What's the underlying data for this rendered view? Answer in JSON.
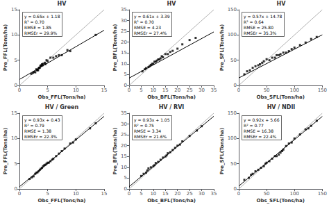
{
  "chart_data": [
    {
      "type": "scatter",
      "title": "HV",
      "xlabel": "Obs_FFL(Tons/ha)",
      "ylabel": "Pre_FFL(Tons/ha)",
      "xlim": [
        0,
        15
      ],
      "ylim": [
        0,
        15
      ],
      "xticks": [
        0,
        5,
        10,
        15
      ],
      "yticks": [
        0,
        5,
        10,
        15
      ],
      "grid": false,
      "annotations": [
        "y = 0.65x + 1.18",
        "R² = 0.70",
        "RMSE = 1.85",
        "RMSEr = 29.9%"
      ],
      "series": [
        {
          "type": "line",
          "color": "#b0b0b0",
          "line_style": "solid",
          "x": [
            0,
            15
          ],
          "values": [
            0,
            15
          ]
        },
        {
          "type": "line",
          "color": "black",
          "line_style": "solid",
          "x": [
            0,
            15
          ],
          "values": [
            1.18,
            10.93
          ]
        },
        {
          "type": "scatter",
          "color": "black",
          "marker": "square",
          "x": [
            2.1,
            2.4,
            2.6,
            2.8,
            3.0,
            3.1,
            3.2,
            3.3,
            3.4,
            3.5,
            3.6,
            3.7,
            3.8,
            3.9,
            4.0,
            4.1,
            4.2,
            4.5,
            4.6,
            4.8,
            5.0,
            5.5,
            6.0,
            6.5,
            7.0,
            7.5,
            8.5,
            9.0,
            13.5
          ],
          "values": [
            2.3,
            2.5,
            2.7,
            2.6,
            3.2,
            3.0,
            3.1,
            3.0,
            3.4,
            3.5,
            3.5,
            3.8,
            4.0,
            3.9,
            4.2,
            4.0,
            4.3,
            4.5,
            4.2,
            5.0,
            4.8,
            5.5,
            5.5,
            5.8,
            6.0,
            6.0,
            7.0,
            6.8,
            10.0
          ]
        }
      ]
    },
    {
      "type": "scatter",
      "title": "HV",
      "xlabel": "Obs_BFL(Tons/ha)",
      "ylabel": "Pre_BFL(Tons/ha)",
      "xlim": [
        0,
        35
      ],
      "ylim": [
        0,
        35
      ],
      "xticks": [
        0,
        5,
        10,
        15,
        20,
        25,
        30,
        35
      ],
      "yticks": [
        0,
        5,
        10,
        15,
        20,
        25,
        30,
        35
      ],
      "grid": false,
      "annotations": [
        "y = 0.61x + 3.39",
        "R² = 0.70",
        "RMSE = 4.23",
        "RMSEr = 27.4%"
      ],
      "series": [
        {
          "type": "line",
          "color": "#b0b0b0",
          "line_style": "solid",
          "x": [
            0,
            35
          ],
          "values": [
            0,
            35
          ]
        },
        {
          "type": "line",
          "color": "black",
          "line_style": "solid",
          "x": [
            0,
            35
          ],
          "values": [
            3.39,
            24.74
          ]
        },
        {
          "type": "scatter",
          "color": "black",
          "marker": "square",
          "x": [
            5.5,
            6.5,
            7.0,
            8.0,
            8.5,
            9.0,
            9.5,
            10.0,
            10.5,
            11.0,
            11.5,
            12.0,
            12.5,
            13.0,
            13.5,
            14.0,
            15.0,
            16.0,
            17.0,
            18.0,
            20.0,
            22.0,
            25.0,
            27.5
          ],
          "values": [
            6.5,
            7.5,
            8.0,
            8.5,
            9.0,
            9.5,
            10.0,
            10.0,
            11.0,
            11.0,
            11.5,
            12.0,
            12.0,
            12.5,
            13.5,
            13.0,
            14.5,
            14.5,
            15.5,
            16.0,
            17.0,
            19.0,
            21.0,
            22.0
          ]
        }
      ]
    },
    {
      "type": "scatter",
      "title": "HV",
      "xlabel": "Obs_SFL(Tons/ha)",
      "ylabel": "Pre_SFL(Tons/ha)",
      "xlim": [
        0,
        150
      ],
      "ylim": [
        0,
        150
      ],
      "xticks": [
        0,
        50,
        100,
        150
      ],
      "yticks": [
        0,
        50,
        100,
        150
      ],
      "grid": false,
      "annotations": [
        "y = 0.57x + 14.78",
        "R² = 0.64",
        "RMSE = 25.80",
        "RMSEr = 35.3%"
      ],
      "series": [
        {
          "type": "line",
          "color": "#b0b0b0",
          "line_style": "solid",
          "x": [
            0,
            150
          ],
          "values": [
            0,
            150
          ]
        },
        {
          "type": "line",
          "color": "black",
          "line_style": "solid",
          "x": [
            0,
            150
          ],
          "values": [
            14.78,
            100.28
          ]
        },
        {
          "type": "scatter",
          "color": "black",
          "marker": "square",
          "x": [
            10,
            15,
            20,
            25,
            30,
            35,
            38,
            42,
            45,
            50,
            55,
            60,
            65,
            68,
            72,
            75,
            80,
            85,
            90,
            95,
            100,
            110,
            120,
            130,
            140
          ],
          "values": [
            22,
            28,
            30,
            35,
            38,
            40,
            42,
            45,
            48,
            52,
            50,
            55,
            55,
            60,
            60,
            62,
            65,
            65,
            68,
            72,
            75,
            80,
            85,
            92,
            96
          ]
        }
      ]
    },
    {
      "type": "scatter",
      "title": "HV / Green",
      "xlabel": "Obs_FFL(Tons/ha)",
      "ylabel": "Pre_FFL(Tons/ha)",
      "xlim": [
        0,
        15
      ],
      "ylim": [
        0,
        15
      ],
      "xticks": [
        0,
        5,
        10,
        15
      ],
      "yticks": [
        0,
        5,
        10,
        15
      ],
      "grid": false,
      "annotations": [
        "y = 0.93x + 0.43",
        "R² = 0.79",
        "RMSE = 1.38",
        "RMSEr = 22.3%"
      ],
      "series": [
        {
          "type": "line",
          "color": "#b0b0b0",
          "line_style": "solid",
          "x": [
            0,
            15
          ],
          "values": [
            0,
            15
          ]
        },
        {
          "type": "line",
          "color": "black",
          "line_style": "solid",
          "x": [
            0,
            15
          ],
          "values": [
            0.43,
            14.38
          ]
        },
        {
          "type": "scatter",
          "color": "black",
          "marker": "square",
          "x": [
            1.8,
            2.2,
            2.5,
            2.8,
            3.0,
            3.2,
            3.4,
            3.6,
            3.8,
            4.0,
            4.2,
            4.4,
            4.6,
            4.8,
            5.0,
            5.2,
            5.5,
            5.8,
            6.0,
            6.5,
            7.0,
            7.5,
            8.0,
            9.0,
            9.5,
            10.0,
            12.5,
            13.5
          ],
          "values": [
            2.0,
            2.3,
            2.5,
            3.0,
            3.2,
            3.3,
            3.5,
            3.8,
            4.0,
            4.2,
            4.5,
            4.7,
            4.8,
            5.0,
            5.2,
            5.2,
            5.5,
            5.8,
            6.0,
            6.5,
            7.0,
            7.5,
            8.0,
            9.0,
            9.2,
            9.8,
            12.0,
            13.0
          ]
        }
      ]
    },
    {
      "type": "scatter",
      "title": "HV / RVI",
      "xlabel": "Obs_BFL(Tons/ha)",
      "ylabel": "Pre_BFL(Tons/ha)",
      "xlim": [
        0,
        35
      ],
      "ylim": [
        0,
        35
      ],
      "xticks": [
        0,
        5,
        10,
        15,
        20,
        25,
        30,
        35
      ],
      "yticks": [
        0,
        5,
        10,
        15,
        20,
        25,
        30,
        35
      ],
      "grid": false,
      "annotations": [
        "y = 0.93x + 1.05",
        "R² = 0.75",
        "RMSE = 3.34",
        "RMSEr = 21.6%"
      ],
      "series": [
        {
          "type": "line",
          "color": "#b0b0b0",
          "line_style": "solid",
          "x": [
            0,
            35
          ],
          "values": [
            0,
            35
          ]
        },
        {
          "type": "line",
          "color": "black",
          "line_style": "solid",
          "x": [
            0,
            35
          ],
          "values": [
            1.05,
            33.6
          ]
        },
        {
          "type": "scatter",
          "color": "black",
          "marker": "square",
          "x": [
            5.0,
            6.0,
            7.0,
            7.5,
            8.0,
            9.0,
            10.0,
            10.5,
            11.0,
            12.0,
            13.0,
            14.0,
            15.0,
            15.5,
            16.0,
            17.0,
            18.0,
            19.0,
            20.0,
            21.0,
            22.0,
            25.0,
            28.0,
            30.0
          ],
          "values": [
            6.0,
            7.0,
            7.5,
            8.5,
            9.5,
            10.0,
            10.5,
            11.0,
            12.0,
            12.5,
            13.5,
            14.5,
            15.0,
            15.5,
            16.5,
            17.0,
            18.0,
            19.0,
            20.0,
            20.5,
            22.0,
            24.5,
            27.0,
            29.0
          ]
        }
      ]
    },
    {
      "type": "scatter",
      "title": "HV / NDII",
      "xlabel": "Obs_SFL(Tons/ha)",
      "ylabel": "Pre_SFL(Tons/ha)",
      "xlim": [
        0,
        150
      ],
      "ylim": [
        0,
        150
      ],
      "xticks": [
        0,
        50,
        100,
        150
      ],
      "yticks": [
        0,
        50,
        100,
        150
      ],
      "grid": false,
      "annotations": [
        "y = 0.92x + 5.66",
        "R² = 0.77",
        "RMSE = 16.38",
        "RMSEr = 22.4%"
      ],
      "series": [
        {
          "type": "line",
          "color": "#b0b0b0",
          "line_style": "solid",
          "x": [
            0,
            150
          ],
          "values": [
            0,
            150
          ]
        },
        {
          "type": "line",
          "color": "black",
          "line_style": "solid",
          "x": [
            0,
            150
          ],
          "values": [
            5.66,
            143.66
          ]
        },
        {
          "type": "scatter",
          "color": "black",
          "marker": "square",
          "x": [
            10,
            18,
            22,
            25,
            30,
            35,
            40,
            45,
            48,
            50,
            55,
            60,
            65,
            68,
            72,
            75,
            78,
            80,
            85,
            90,
            95,
            100,
            110,
            120,
            125,
            130,
            140
          ],
          "values": [
            18,
            22,
            28,
            30,
            35,
            38,
            42,
            45,
            50,
            52,
            55,
            60,
            65,
            65,
            68,
            72,
            75,
            78,
            85,
            90,
            92,
            100,
            108,
            118,
            120,
            125,
            135
          ]
        }
      ]
    }
  ]
}
